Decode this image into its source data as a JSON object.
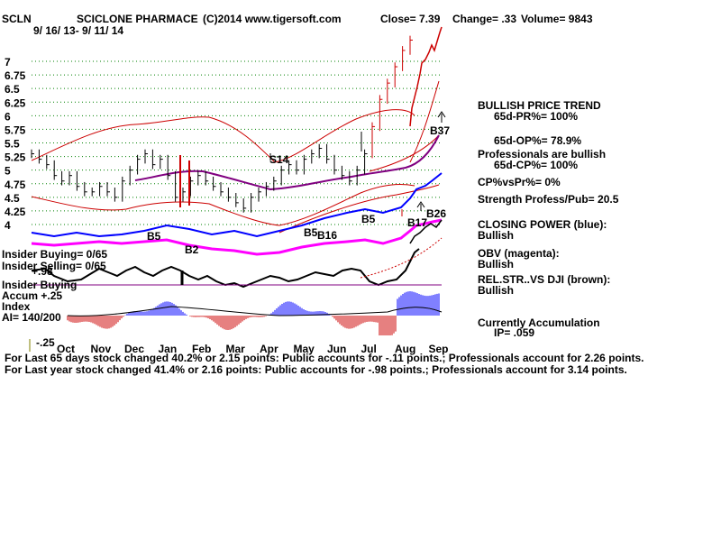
{
  "header": {
    "ticker": "SCLN",
    "company": "SCICLONE PHARMACE",
    "copyright": "(C)2014 www.tigersoft.com",
    "close_text": "Close=  7.39",
    "change_text": "Change= .33",
    "volume_text": "Volume= 9843",
    "date_range": "9/ 16/ 13- 9/ 11/ 14"
  },
  "chart_data": {
    "type": "line",
    "ylim": [
      4.0,
      7.0
    ],
    "y_ticks": [
      "7",
      "6.75",
      "6.5",
      "6.25",
      "6",
      "5.75",
      "5.5",
      "5.25",
      "5",
      "4.75",
      "4.5",
      "4.25",
      "4"
    ],
    "x_ticks": [
      "Oct",
      "Nov",
      "Dec",
      "Jan",
      "Feb",
      "Mar",
      "Apr",
      "May",
      "Jun",
      "Jul",
      "Aug",
      "Sep"
    ],
    "grid": "horizontal dotted",
    "price_closes": [
      5.3,
      5.2,
      5.1,
      4.9,
      4.8,
      4.9,
      4.7,
      4.6,
      4.6,
      4.7,
      4.6,
      4.5,
      4.8,
      5.0,
      5.2,
      5.3,
      5.1,
      5.2,
      4.9,
      4.5,
      4.6,
      4.8,
      4.9,
      4.8,
      4.7,
      4.6,
      4.5,
      4.4,
      4.3,
      4.5,
      4.6,
      4.7,
      4.8,
      5.0,
      5.1,
      5.0,
      5.2,
      5.3,
      5.4,
      5.2,
      5.0,
      4.9,
      4.8,
      5.0,
      5.3,
      5.8,
      6.3,
      6.6,
      6.9,
      7.2,
      7.39
    ],
    "signals": [
      "S14",
      "B5",
      "B2",
      "B5",
      "B16",
      "B5",
      "B17",
      "B26",
      "B37"
    ]
  },
  "indicators": {
    "insider_buying": "Insider Buying= 0/65",
    "insider_selling": "Insider Selling= 0/65",
    "insider_buying_label": "Insider Buying",
    "accum_top": "Accum  +.25",
    "accum_index": "Index",
    "accum_mid": "+.98",
    "ai_value": "AI= 140/200",
    "accum_bottom": "-.25"
  },
  "right_panel": {
    "trend_title": "BULLISH PRICE TREND",
    "pr": "65d-PR%= 100%",
    "op": "65d-OP%= 78.9%",
    "prof_bullish": "Professionals are bullish",
    "cp": "65d-CP%= 100%",
    "cpvspr": "CP%vsPr%=  0%",
    "strength": "Strength Profess/Pub= 20.5",
    "closing_power": "CLOSING POWER (blue):",
    "closing_power_val": "Bullish",
    "obv": "OBV (magenta):",
    "obv_val": "Bullish",
    "relstr": "REL.STR..VS DJI (brown):",
    "relstr_val": "Bullish",
    "accum_title": "Currently Accumulation",
    "ip": "IP=  .059"
  },
  "footer": {
    "line1": "For Last 65 days stock changed  40.2% or  2.15 points:  Public accounts for -.11 points.;  Professionals account for  2.26 points.",
    "line2": "For Last year stock changed  41.4% or  2.16 points:  Public accounts for -.98 points.;  Professionals account for  3.14 points."
  },
  "colors": {
    "price_bars": "#000000",
    "bands": "#cc0000",
    "moving_avg": "#800080",
    "closing_power": "#0000ff",
    "obv": "#ff00ff",
    "accum_positive": "#0000ff",
    "accum_negative": "#cc0000",
    "grid": "#008000"
  }
}
